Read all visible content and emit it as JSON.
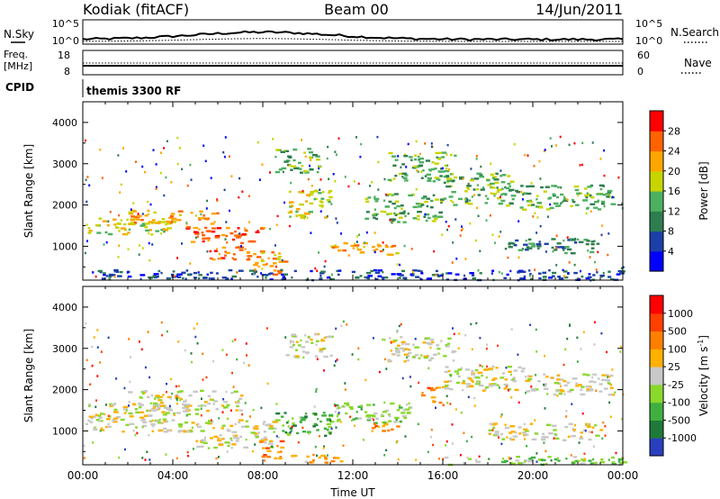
{
  "header": {
    "station": "Kodiak (fitACF)",
    "beam": "Beam 00",
    "date": "14/Jun/2011"
  },
  "strip_labels": {
    "nsky": "N.Sky",
    "nsearch": "N.Search",
    "freq_line1": "Freq.",
    "freq_line2": "[MHz]",
    "nave": "Nave",
    "cpid": "CPID",
    "cpid_value": "themis 3300 RF",
    "nsky_ticks": [
      "10^5",
      "10^0"
    ],
    "nsearch_ticks": [
      "10^5",
      "10^0"
    ],
    "freq_ticks": [
      "18",
      "8"
    ],
    "nave_ticks": [
      "60",
      "0"
    ]
  },
  "chart_data": [
    {
      "type": "heatmap",
      "panel": "power",
      "ylabel": "Slant Range [km]",
      "ylim": [
        180,
        4500
      ],
      "yticks": [
        "4000",
        "3000",
        "2000",
        "1000"
      ],
      "xlim_hours": [
        0,
        24
      ],
      "colorbar": {
        "label": "Power [dB]",
        "ticks": [
          "28",
          "24",
          "20",
          "16",
          "12",
          "8",
          "4"
        ],
        "colors": [
          "#0000ff",
          "#1c3fa8",
          "#2e7d4f",
          "#4cb060",
          "#c8d400",
          "#ffa500",
          "#ff6200",
          "#ff0000"
        ]
      },
      "bands": [
        {
          "t0": 0.1,
          "t1": 4.0,
          "r0": 1300,
          "r1": 1700,
          "level": 4
        },
        {
          "t0": 2.0,
          "t1": 6.0,
          "r0": 1550,
          "r1": 1900,
          "level": 5
        },
        {
          "t0": 4.5,
          "t1": 8.0,
          "r0": 1100,
          "r1": 1500,
          "level": 6
        },
        {
          "t0": 5.5,
          "t1": 7.5,
          "r0": 700,
          "r1": 1050,
          "level": 6
        },
        {
          "t0": 7.5,
          "t1": 9.0,
          "r0": 300,
          "r1": 900,
          "level": 5
        },
        {
          "t0": 9.0,
          "t1": 11.0,
          "r0": 1700,
          "r1": 2400,
          "level": 4
        },
        {
          "t0": 8.5,
          "t1": 10.5,
          "r0": 2800,
          "r1": 3400,
          "level": 3
        },
        {
          "t0": 11.0,
          "t1": 14.0,
          "r0": 800,
          "r1": 1100,
          "level": 5
        },
        {
          "t0": 12.5,
          "t1": 16.0,
          "r0": 1600,
          "r1": 2300,
          "level": 3
        },
        {
          "t0": 13.5,
          "t1": 16.5,
          "r0": 2600,
          "r1": 3300,
          "level": 3
        },
        {
          "t0": 16.0,
          "t1": 19.0,
          "r0": 2000,
          "r1": 2800,
          "level": 3
        },
        {
          "t0": 18.5,
          "t1": 23.0,
          "r0": 850,
          "r1": 1200,
          "level": 2
        },
        {
          "t0": 19.0,
          "t1": 23.5,
          "r0": 1900,
          "r1": 2500,
          "level": 3
        },
        {
          "t0": 0.0,
          "t1": 24.0,
          "r0": 200,
          "r1": 450,
          "level": 1
        }
      ]
    },
    {
      "type": "heatmap",
      "panel": "velocity",
      "ylabel": "Slant Range [km]",
      "ylim": [
        180,
        4500
      ],
      "yticks": [
        "4000",
        "3000",
        "2000",
        "1000"
      ],
      "xlim_hours": [
        0,
        24
      ],
      "xticks": [
        "00:00",
        "04:00",
        "08:00",
        "12:00",
        "16:00",
        "20:00",
        "00:00"
      ],
      "xlabel": "Time UT",
      "colorbar": {
        "label": "Velocity [m s",
        "label_sup": "-1",
        "label_end": "]",
        "ticks": [
          "1000",
          "500",
          "100",
          "25",
          "-25",
          "-100",
          "-500",
          "-1000"
        ],
        "colors": [
          "#2a3fbf",
          "#1f7a3a",
          "#3fb040",
          "#8ad82c",
          "#c8c8c8",
          "#ffb000",
          "#ff7f00",
          "#ff4000",
          "#ff0000"
        ]
      },
      "bands": [
        {
          "t0": 0.1,
          "t1": 5.0,
          "r0": 1000,
          "r1": 1700,
          "level": 4
        },
        {
          "t0": 2.0,
          "t1": 7.0,
          "r0": 1500,
          "r1": 2000,
          "level": 4
        },
        {
          "t0": 5.0,
          "t1": 8.5,
          "r0": 600,
          "r1": 1300,
          "level": 4
        },
        {
          "t0": 7.8,
          "t1": 8.8,
          "r0": 300,
          "r1": 800,
          "level": 6
        },
        {
          "t0": 8.5,
          "t1": 11.0,
          "r0": 900,
          "r1": 1500,
          "level": 2
        },
        {
          "t0": 11.0,
          "t1": 14.5,
          "r0": 1200,
          "r1": 1700,
          "level": 3
        },
        {
          "t0": 12.8,
          "t1": 14.0,
          "r0": 1000,
          "r1": 1300,
          "level": 6
        },
        {
          "t0": 9.0,
          "t1": 11.0,
          "r0": 2800,
          "r1": 3400,
          "level": 4
        },
        {
          "t0": 13.5,
          "t1": 16.5,
          "r0": 2700,
          "r1": 3300,
          "level": 4
        },
        {
          "t0": 15.0,
          "t1": 16.0,
          "r0": 1700,
          "r1": 2100,
          "level": 6
        },
        {
          "t0": 16.0,
          "t1": 19.5,
          "r0": 2000,
          "r1": 2600,
          "level": 4
        },
        {
          "t0": 19.0,
          "t1": 23.5,
          "r0": 1900,
          "r1": 2400,
          "level": 4
        },
        {
          "t0": 18.0,
          "t1": 23.0,
          "r0": 800,
          "r1": 1200,
          "level": 4
        },
        {
          "t0": 9.0,
          "t1": 11.5,
          "r0": 250,
          "r1": 450,
          "level": 5
        },
        {
          "t0": 16.0,
          "t1": 24.0,
          "r0": 200,
          "r1": 400,
          "level": 3
        }
      ]
    }
  ]
}
